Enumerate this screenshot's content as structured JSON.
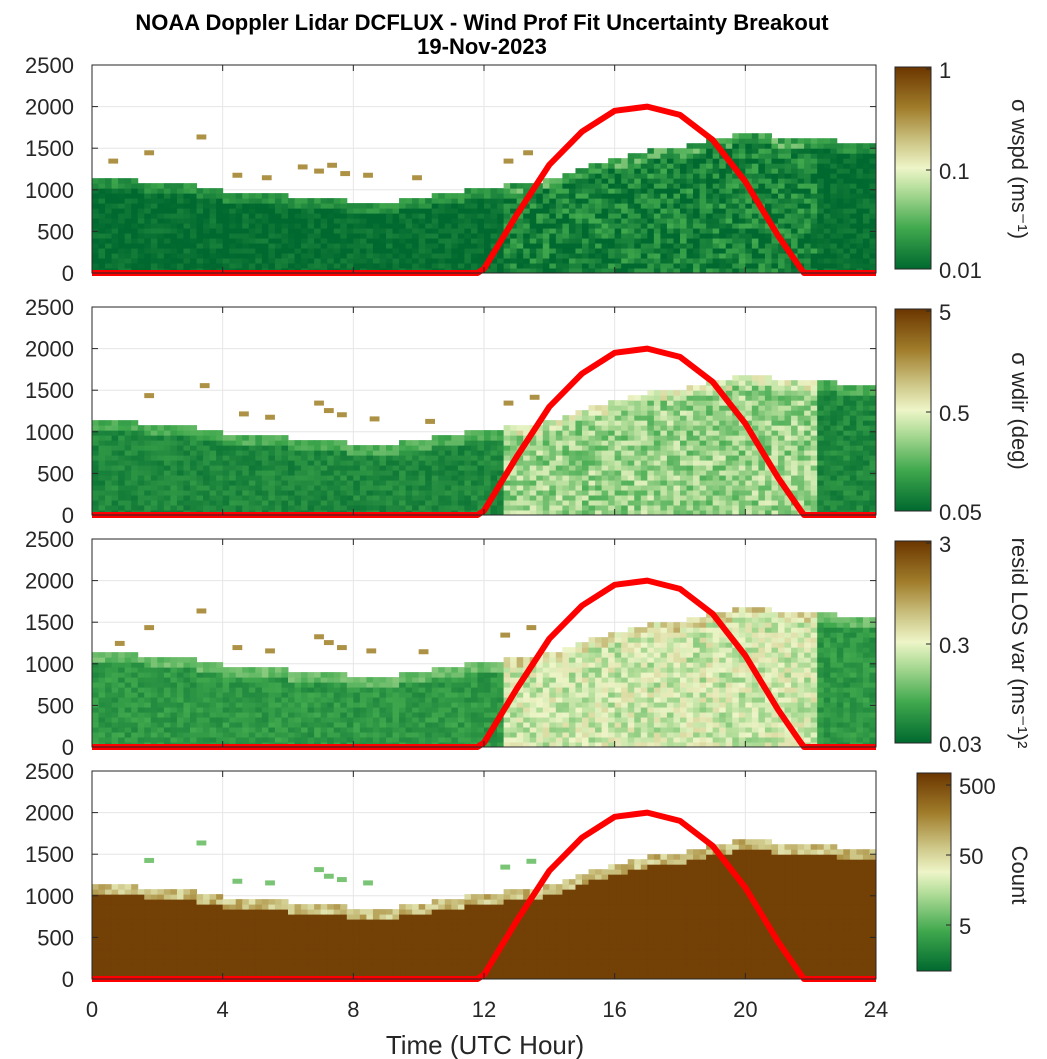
{
  "chart_data": {
    "type": "heatmap",
    "title": "NOAA Doppler Lidar DCFLUX - Wind Prof Fit Uncertainty Breakout",
    "subtitle": "19-Nov-2023",
    "xlabel": "Time (UTC Hour)",
    "x_ticks": [
      "0",
      "4",
      "8",
      "12",
      "16",
      "20",
      "24"
    ],
    "xlim": [
      0,
      24
    ],
    "y_ticks": [
      "0",
      "500",
      "1000",
      "1500",
      "2000",
      "2500"
    ],
    "ylim": [
      0,
      2500
    ],
    "grid": true,
    "colormap": "green-to-brown",
    "sun_curve": {
      "color": "#ff0000",
      "x": [
        0,
        11.8,
        12.0,
        13,
        14,
        15,
        16,
        17,
        18,
        19,
        20,
        21,
        21.7,
        21.8,
        24
      ],
      "y": [
        0,
        0,
        50,
        700,
        1300,
        1700,
        1950,
        2000,
        1900,
        1600,
        1100,
        450,
        50,
        0,
        0
      ]
    },
    "panels": [
      {
        "colorbar_label": "σ wspd (ms⁻¹)",
        "colorbar_ticks": [
          "1",
          "0.1",
          "0.01"
        ],
        "boundary": [
          [
            0,
            1100
          ],
          [
            1,
            1100
          ],
          [
            2,
            1050
          ],
          [
            3,
            1030
          ],
          [
            4,
            950
          ],
          [
            5,
            920
          ],
          [
            6,
            900
          ],
          [
            7,
            870
          ],
          [
            8,
            830
          ],
          [
            9,
            820
          ],
          [
            10,
            880
          ],
          [
            11,
            950
          ],
          [
            12,
            1000
          ],
          [
            13,
            1050
          ],
          [
            14,
            1100
          ],
          [
            15,
            1250
          ],
          [
            16,
            1350
          ],
          [
            17,
            1450
          ],
          [
            18,
            1500
          ],
          [
            19,
            1600
          ],
          [
            20,
            1650
          ],
          [
            21,
            1600
          ],
          [
            22,
            1580
          ],
          [
            23,
            1550
          ],
          [
            23.8,
            1500
          ]
        ],
        "scatter": [
          [
            0.5,
            1350
          ],
          [
            1.6,
            1450
          ],
          [
            3.2,
            1640
          ],
          [
            4.3,
            1180
          ],
          [
            5.2,
            1150
          ],
          [
            6.3,
            1280
          ],
          [
            6.8,
            1230
          ],
          [
            7.2,
            1300
          ],
          [
            7.6,
            1200
          ],
          [
            8.3,
            1180
          ],
          [
            9.8,
            1150
          ],
          [
            12.6,
            1350
          ],
          [
            13.2,
            1450
          ]
        ],
        "day_level": 0.08,
        "night_level": 0.02
      },
      {
        "colorbar_label": "σ wdir (deg)",
        "colorbar_ticks": [
          "5",
          "0.5",
          "0.05"
        ],
        "boundary": [
          [
            0,
            1100
          ],
          [
            1,
            1100
          ],
          [
            2,
            1050
          ],
          [
            3,
            1030
          ],
          [
            4,
            950
          ],
          [
            5,
            920
          ],
          [
            6,
            900
          ],
          [
            7,
            870
          ],
          [
            8,
            830
          ],
          [
            9,
            820
          ],
          [
            10,
            880
          ],
          [
            11,
            950
          ],
          [
            12,
            1000
          ],
          [
            13,
            1050
          ],
          [
            14,
            1100
          ],
          [
            15,
            1250
          ],
          [
            16,
            1350
          ],
          [
            17,
            1450
          ],
          [
            18,
            1500
          ],
          [
            19,
            1600
          ],
          [
            20,
            1650
          ],
          [
            21,
            1600
          ],
          [
            22,
            1580
          ],
          [
            23,
            1550
          ],
          [
            23.8,
            1500
          ]
        ],
        "scatter": [
          [
            1.6,
            1440
          ],
          [
            3.3,
            1560
          ],
          [
            4.5,
            1220
          ],
          [
            5.3,
            1180
          ],
          [
            6.8,
            1350
          ],
          [
            7.1,
            1260
          ],
          [
            7.5,
            1210
          ],
          [
            8.5,
            1160
          ],
          [
            10.2,
            1130
          ],
          [
            12.6,
            1350
          ],
          [
            13.4,
            1420
          ]
        ],
        "day_level": 0.35,
        "night_level": 0.1
      },
      {
        "colorbar_label": "resid LOS var (ms⁻¹)²",
        "colorbar_ticks": [
          "3",
          "0.3",
          "0.03"
        ],
        "boundary": [
          [
            0,
            1100
          ],
          [
            1,
            1100
          ],
          [
            2,
            1050
          ],
          [
            3,
            1030
          ],
          [
            4,
            950
          ],
          [
            5,
            920
          ],
          [
            6,
            900
          ],
          [
            7,
            870
          ],
          [
            8,
            830
          ],
          [
            9,
            820
          ],
          [
            10,
            880
          ],
          [
            11,
            950
          ],
          [
            12,
            1000
          ],
          [
            13,
            1050
          ],
          [
            14,
            1100
          ],
          [
            15,
            1250
          ],
          [
            16,
            1350
          ],
          [
            17,
            1450
          ],
          [
            18,
            1500
          ],
          [
            19,
            1600
          ],
          [
            20,
            1650
          ],
          [
            21,
            1600
          ],
          [
            22,
            1580
          ],
          [
            23,
            1550
          ],
          [
            23.8,
            1500
          ]
        ],
        "scatter": [
          [
            0.7,
            1250
          ],
          [
            1.6,
            1440
          ],
          [
            3.2,
            1640
          ],
          [
            4.3,
            1200
          ],
          [
            5.3,
            1160
          ],
          [
            6.8,
            1330
          ],
          [
            7.1,
            1260
          ],
          [
            7.5,
            1200
          ],
          [
            8.4,
            1160
          ],
          [
            10.0,
            1150
          ],
          [
            12.5,
            1350
          ],
          [
            13.3,
            1440
          ]
        ],
        "day_level": 0.45,
        "night_level": 0.15
      },
      {
        "colorbar_label": "Count",
        "colorbar_ticks": [
          "500",
          "50",
          "5"
        ],
        "boundary": [
          [
            0,
            1100
          ],
          [
            1,
            1100
          ],
          [
            2,
            1050
          ],
          [
            3,
            1030
          ],
          [
            4,
            950
          ],
          [
            5,
            920
          ],
          [
            6,
            900
          ],
          [
            7,
            870
          ],
          [
            8,
            830
          ],
          [
            9,
            820
          ],
          [
            10,
            880
          ],
          [
            11,
            950
          ],
          [
            12,
            1000
          ],
          [
            13,
            1050
          ],
          [
            14,
            1100
          ],
          [
            15,
            1250
          ],
          [
            16,
            1350
          ],
          [
            17,
            1450
          ],
          [
            18,
            1500
          ],
          [
            19,
            1600
          ],
          [
            20,
            1650
          ],
          [
            21,
            1600
          ],
          [
            22,
            1580
          ],
          [
            23,
            1550
          ],
          [
            23.8,
            1500
          ]
        ],
        "scatter": [
          [
            1.6,
            1430
          ],
          [
            3.2,
            1640
          ],
          [
            4.3,
            1180
          ],
          [
            5.3,
            1160
          ],
          [
            6.8,
            1320
          ],
          [
            7.1,
            1240
          ],
          [
            7.5,
            1200
          ],
          [
            8.3,
            1160
          ],
          [
            12.5,
            1350
          ],
          [
            13.3,
            1420
          ]
        ],
        "day_level": 0.97,
        "night_level": 0.97
      }
    ]
  }
}
